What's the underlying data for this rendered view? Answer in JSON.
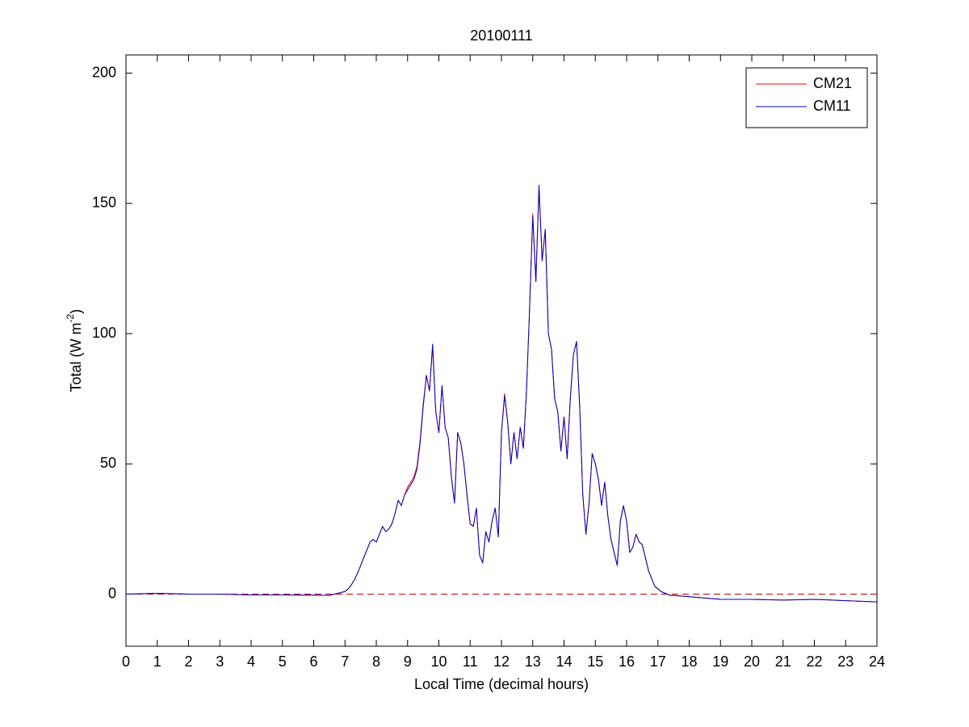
{
  "chart_data": {
    "type": "line",
    "title": "20100111",
    "xlabel": "Local Time (decimal hours)",
    "ylabel": {
      "text": "Total (W m",
      "superscript": "-2",
      "suffix": ")"
    },
    "x": [
      0,
      1,
      2,
      3,
      4,
      5,
      6,
      6.5,
      7.0,
      7.1,
      7.2,
      7.3,
      7.4,
      7.5,
      7.6,
      7.7,
      7.8,
      7.9,
      8.0,
      8.1,
      8.2,
      8.3,
      8.4,
      8.5,
      8.6,
      8.7,
      8.8,
      8.9,
      9.0,
      9.1,
      9.2,
      9.3,
      9.4,
      9.5,
      9.6,
      9.7,
      9.8,
      9.9,
      10.0,
      10.1,
      10.2,
      10.3,
      10.4,
      10.5,
      10.6,
      10.7,
      10.8,
      10.9,
      11.0,
      11.1,
      11.2,
      11.3,
      11.4,
      11.5,
      11.6,
      11.7,
      11.8,
      11.9,
      12.0,
      12.1,
      12.2,
      12.3,
      12.4,
      12.5,
      12.6,
      12.7,
      12.8,
      12.9,
      13.0,
      13.1,
      13.2,
      13.3,
      13.4,
      13.5,
      13.6,
      13.7,
      13.8,
      13.9,
      14.0,
      14.1,
      14.2,
      14.3,
      14.4,
      14.5,
      14.6,
      14.7,
      14.8,
      14.9,
      15.0,
      15.1,
      15.2,
      15.3,
      15.4,
      15.5,
      15.6,
      15.7,
      15.8,
      15.9,
      16.0,
      16.1,
      16.2,
      16.3,
      16.4,
      16.5,
      16.6,
      16.7,
      16.8,
      16.9,
      17.0,
      17.1,
      17.2,
      17.3,
      17.4,
      17.5,
      18,
      19,
      20,
      21,
      22,
      23,
      24
    ],
    "series": [
      {
        "name": "CM21",
        "color": "#ff0000",
        "values": [
          0,
          0.3,
          0,
          0,
          -0.3,
          -0.3,
          -0.4,
          -0.5,
          1,
          2,
          3.5,
          5.5,
          8,
          11,
          14,
          17,
          20,
          21,
          20,
          23,
          26,
          24,
          25,
          27,
          31,
          36,
          34,
          38,
          41,
          43,
          45,
          49,
          59,
          73,
          84,
          78,
          95,
          70,
          62,
          80,
          64,
          60,
          45,
          35,
          62,
          58,
          50,
          38,
          27,
          26,
          33,
          15,
          12,
          24,
          20,
          28,
          33,
          22,
          62,
          77,
          66,
          50,
          62,
          52,
          64,
          56,
          78,
          110,
          146,
          120,
          156,
          128,
          140,
          100,
          94,
          75,
          70,
          55,
          68,
          52,
          75,
          92,
          97,
          72,
          38,
          23,
          35,
          54,
          50,
          44,
          34,
          43,
          30,
          21,
          16,
          11,
          28,
          34,
          28,
          16,
          18,
          23,
          20,
          19,
          14,
          9,
          6,
          3,
          2,
          1,
          0.5,
          0,
          -0.5,
          -0.5,
          -1,
          -2,
          -2,
          -2.3,
          -2,
          -2.5,
          -3
        ]
      },
      {
        "name": "CM11",
        "color": "#0000c0",
        "values": [
          0,
          0.3,
          0,
          0,
          -0.3,
          -0.3,
          -0.4,
          -0.5,
          1,
          2,
          3.5,
          5.5,
          8,
          11,
          14,
          17,
          20,
          21,
          20,
          23,
          26,
          24,
          25,
          27,
          31,
          36,
          34,
          38,
          40,
          42,
          44,
          48,
          58,
          72,
          84,
          78,
          96,
          70,
          62,
          80,
          64,
          60,
          45,
          35,
          62,
          58,
          50,
          38,
          27,
          26,
          33,
          15,
          12,
          24,
          20,
          28,
          33,
          22,
          62,
          76,
          66,
          50,
          62,
          52,
          64,
          56,
          78,
          110,
          145,
          120,
          157,
          128,
          140,
          100,
          94,
          75,
          70,
          55,
          68,
          52,
          75,
          92,
          97,
          72,
          38,
          23,
          35,
          54,
          50,
          44,
          34,
          43,
          30,
          21,
          16,
          11,
          28,
          34,
          28,
          16,
          18,
          23,
          20,
          19,
          14,
          9,
          6,
          3,
          2,
          1,
          0.5,
          0,
          -0.5,
          -0.5,
          -1,
          -2,
          -2,
          -2.3,
          -2,
          -2.5,
          -3
        ]
      }
    ],
    "reference_line": {
      "value": 0,
      "color": "#c00000",
      "style": "dashed"
    },
    "xlim": [
      0,
      24
    ],
    "xticks": [
      0,
      1,
      2,
      3,
      4,
      5,
      6,
      7,
      8,
      9,
      10,
      11,
      12,
      13,
      14,
      15,
      16,
      17,
      18,
      19,
      20,
      21,
      22,
      23,
      24
    ],
    "ylim": [
      -20,
      207
    ],
    "yticks": [
      0,
      50,
      100,
      150,
      200
    ],
    "grid": false,
    "legend": "upper right"
  }
}
